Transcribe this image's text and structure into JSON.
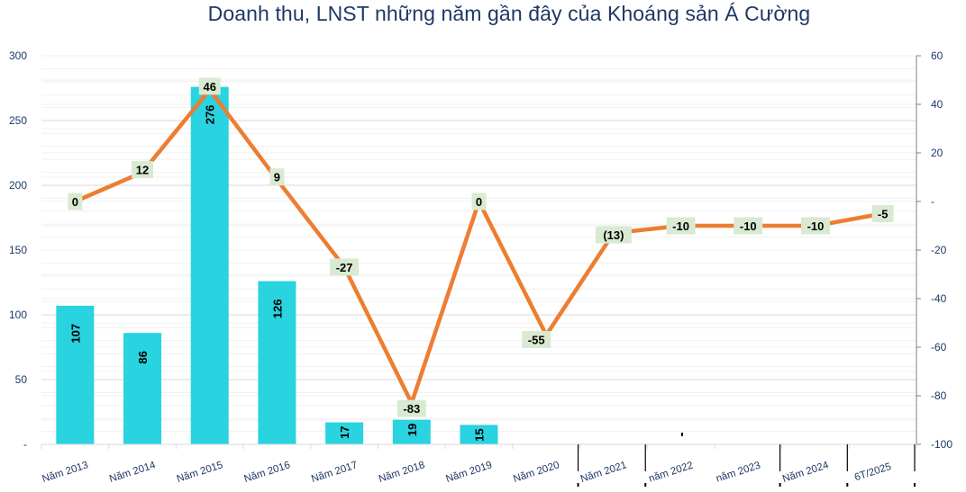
{
  "title": "Doanh thu, LNST những năm gần đây của Khoáng sản Á Cường",
  "colors": {
    "bar": "#29d3e0",
    "line": "#ed7d31",
    "label_bg": "#d9ead3",
    "axis_text": "#1f3864",
    "grid_major": "#d9d9d9",
    "grid_minor": "#f0f0f0"
  },
  "chart_data": {
    "type": "bar+line",
    "title": "Doanh thu, LNST những năm gần đây của Khoáng sản Á Cường",
    "categories": [
      "Năm 2013",
      "Năm 2014",
      "Năm 2015",
      "Năm 2016",
      "Năm 2017",
      "Năm 2018",
      "Năm 2019",
      "Năm 2020",
      "Năm 2021",
      "năm 2022",
      "năm 2023",
      "Năm 2024",
      "6T/2025"
    ],
    "series": [
      {
        "name": "Doanh thu",
        "type": "bar",
        "axis": "left",
        "values": [
          107,
          86,
          276,
          126,
          17,
          19,
          15,
          null,
          null,
          null,
          null,
          null,
          null
        ],
        "labels": [
          "107",
          "86",
          "276",
          "126",
          "17",
          "19",
          "15",
          "",
          "",
          "",
          "",
          "",
          ""
        ]
      },
      {
        "name": "LNST",
        "type": "line",
        "axis": "right",
        "values": [
          0,
          12,
          46,
          9,
          -27,
          -83,
          0,
          -55,
          -13,
          -10,
          -10,
          -10,
          -5
        ],
        "labels": [
          "0",
          "12",
          "46",
          "9",
          "-27",
          "-83",
          "0",
          "-55",
          "(13)",
          "-10",
          "-10",
          "-10",
          "-5"
        ]
      }
    ],
    "left_axis": {
      "ylim": [
        0,
        300
      ],
      "ticks": [
        "-",
        "50",
        "100",
        "150",
        "200",
        "250",
        "300"
      ]
    },
    "right_axis": {
      "ylim": [
        -100,
        60
      ],
      "ticks": [
        "-100",
        "-80",
        "-60",
        "-40",
        "-20",
        "-",
        "20",
        "40",
        "60"
      ]
    },
    "grid": true,
    "legend": "none"
  }
}
